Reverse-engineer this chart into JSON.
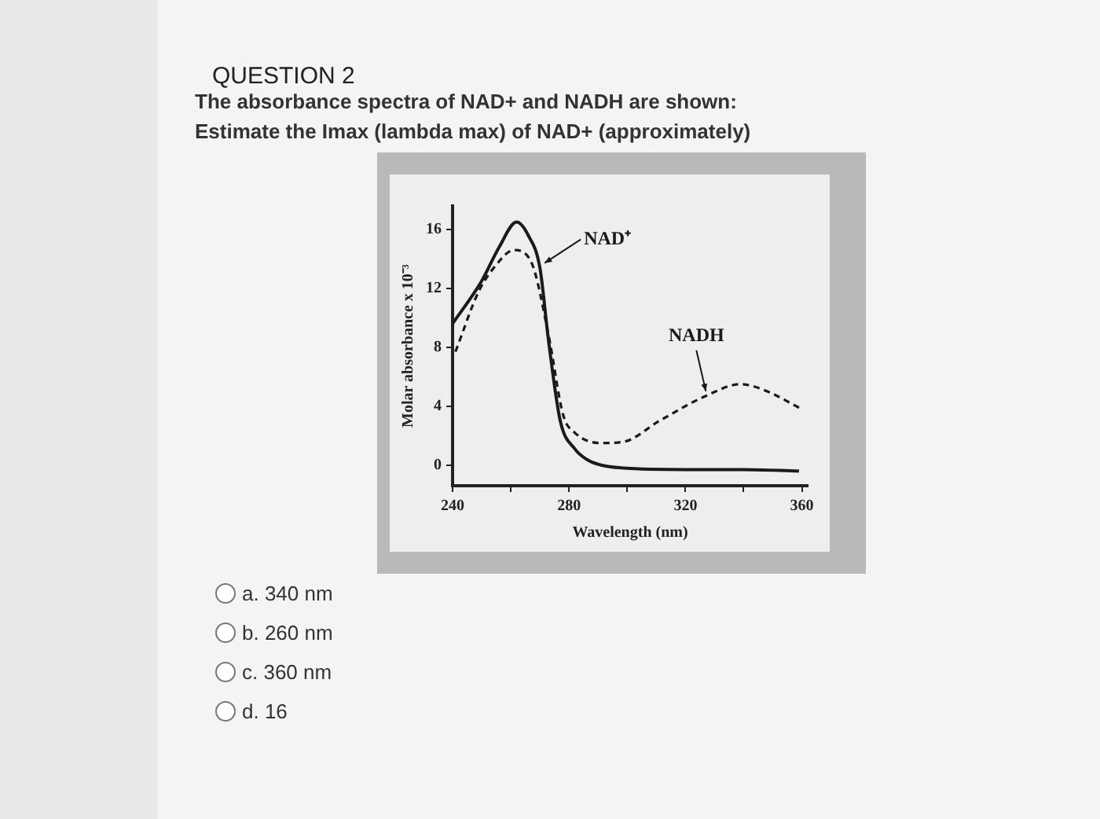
{
  "chart_data": {
    "type": "line",
    "title": "QUESTION 2",
    "subtitle": "The absorbance spectra of NAD+ and NADH are shown:",
    "annotations": [
      "Estimate the Imax (lambda max) of NAD+ (approximately)",
      "a. 340 nm",
      "b. 260 nm",
      "c. 360 nm",
      "d. 16"
    ],
    "xlabel": "Wavelength (nm)",
    "ylabel": "Molar absorbance x 10⁻³",
    "xlim": [
      240,
      362
    ],
    "ylim": [
      -1.4,
      17.6
    ],
    "xticks": [
      240,
      {
        "value": 260,
        "label": null
      },
      280,
      {
        "value": 300,
        "label": null
      },
      320,
      {
        "value": 340,
        "label": null
      },
      360
    ],
    "yticks": [
      0,
      4,
      8,
      12,
      16
    ],
    "grid": false,
    "legend": false,
    "marker": "none",
    "series": [
      {
        "name": "NAD⁺",
        "color": "#1a1a1a",
        "line_style": "solid",
        "x": [
          240,
          250,
          256,
          262,
          266,
          270,
          273,
          277,
          282,
          286,
          291,
          299,
          320,
          340,
          359
        ],
        "values": [
          9.6,
          12.5,
          14.8,
          16.5,
          15.6,
          13.4,
          8.4,
          3.0,
          1.1,
          0.4,
          0,
          -0.2,
          -0.3,
          -0.3,
          -0.4
        ]
      },
      {
        "name": "NADH",
        "color": "#1a1a1a",
        "line_style": "dashed",
        "x": [
          241,
          249,
          255,
          261,
          267,
          273,
          278,
          282,
          291,
          299,
          311,
          327,
          339,
          347,
          360
        ],
        "values": [
          7.7,
          11.8,
          13.6,
          14.6,
          13.8,
          8.8,
          3.4,
          2.2,
          1.5,
          1.6,
          3.0,
          4.7,
          5.5,
          5.1,
          3.8
        ]
      }
    ]
  }
}
